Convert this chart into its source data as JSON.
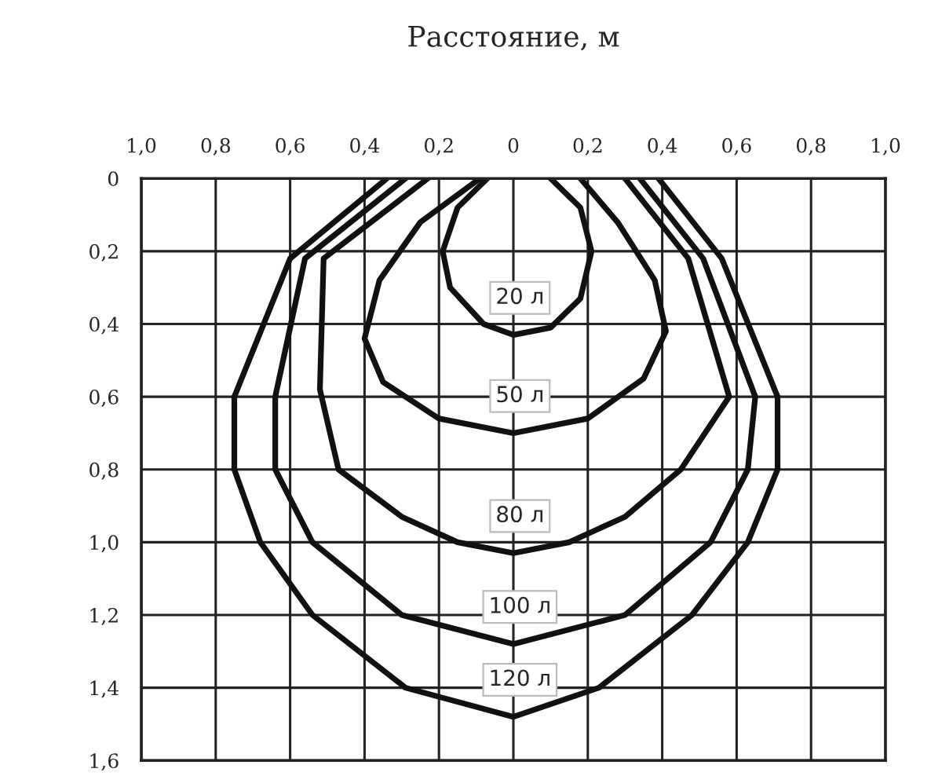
{
  "chart_data": {
    "type": "line",
    "title": "Расстояние, м",
    "series": [
      {
        "name": "20 л",
        "color": "#111111",
        "x": [
          -0.07,
          -0.15,
          -0.19,
          -0.17,
          -0.08,
          0,
          0.1,
          0.18,
          0.21,
          0.18,
          0.1
        ],
        "values": [
          0,
          0.08,
          0.2,
          0.3,
          0.4,
          0.43,
          0.41,
          0.33,
          0.2,
          0.08,
          0
        ]
      },
      {
        "name": "50 л",
        "color": "#111111",
        "x": [
          -0.09,
          -0.25,
          -0.36,
          -0.4,
          -0.35,
          -0.2,
          0,
          0.2,
          0.35,
          0.41,
          0.38,
          0.28,
          0.18
        ],
        "values": [
          0,
          0.12,
          0.28,
          0.44,
          0.56,
          0.66,
          0.7,
          0.66,
          0.55,
          0.42,
          0.28,
          0.12,
          0
        ]
      },
      {
        "name": "80 л",
        "color": "#111111",
        "x": [
          -0.23,
          -0.51,
          -0.52,
          -0.47,
          -0.3,
          -0.15,
          0,
          0.15,
          0.3,
          0.45,
          0.58,
          0.47,
          0.3
        ],
        "values": [
          0,
          0.22,
          0.58,
          0.8,
          0.93,
          1.0,
          1.03,
          1.0,
          0.93,
          0.8,
          0.6,
          0.22,
          0
        ]
      },
      {
        "name": "100 л",
        "color": "#111111",
        "x": [
          -0.29,
          -0.56,
          -0.64,
          -0.64,
          -0.54,
          -0.3,
          0,
          0.3,
          0.53,
          0.63,
          0.65,
          0.51,
          0.34
        ],
        "values": [
          0,
          0.22,
          0.6,
          0.8,
          1.0,
          1.2,
          1.28,
          1.2,
          1.0,
          0.8,
          0.6,
          0.22,
          0
        ]
      },
      {
        "name": "120 л",
        "color": "#111111",
        "x": [
          -0.34,
          -0.6,
          -0.75,
          -0.75,
          -0.68,
          -0.54,
          -0.29,
          0,
          0.23,
          0.48,
          0.63,
          0.71,
          0.71,
          0.56,
          0.39
        ],
        "values": [
          0,
          0.22,
          0.6,
          0.8,
          1.0,
          1.2,
          1.4,
          1.48,
          1.4,
          1.2,
          1.0,
          0.8,
          0.6,
          0.22,
          0
        ]
      }
    ],
    "xlim": [
      -1.0,
      1.0
    ],
    "xticks": [
      {
        "value": -1.0,
        "label": "1,0"
      },
      {
        "value": -0.8,
        "label": "0,8"
      },
      {
        "value": -0.6,
        "label": "0,6"
      },
      {
        "value": -0.4,
        "label": "0,4"
      },
      {
        "value": -0.2,
        "label": "0,2"
      },
      0,
      {
        "value": 0.2,
        "label": "0,2"
      },
      {
        "value": 0.4,
        "label": "0,4"
      },
      {
        "value": 0.6,
        "label": "0,6"
      },
      {
        "value": 0.8,
        "label": "0,8"
      },
      {
        "value": 1.0,
        "label": "1,0"
      }
    ],
    "ylim": [
      1.6,
      0
    ],
    "yticks": [
      0,
      {
        "value": 0.2,
        "label": "0,2"
      },
      {
        "value": 0.4,
        "label": "0,4"
      },
      {
        "value": 0.6,
        "label": "0,6"
      },
      {
        "value": 0.8,
        "label": "0,8"
      },
      {
        "value": 1.0,
        "label": "1,0"
      },
      {
        "value": 1.2,
        "label": "1,2"
      },
      {
        "value": 1.4,
        "label": "1,4"
      },
      {
        "value": 1.6,
        "label": "1,6"
      }
    ],
    "grid": true,
    "legend": false,
    "marker": "none",
    "line_style": "solid"
  }
}
